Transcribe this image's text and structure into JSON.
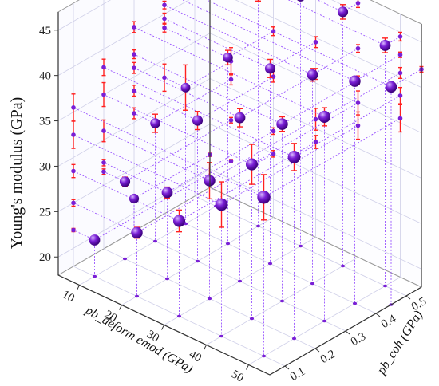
{
  "chart_data": {
    "type": "scatter",
    "mode": "3d-scatter-with-error-bars-and-wall-projections",
    "xlabel": "pb_deform emod (GPa)",
    "ylabel": "pb_coh (GPa)",
    "zlabel": "Young's modulus (GPa)",
    "xlim": [
      5,
      55
    ],
    "ylim": [
      0.05,
      0.55
    ],
    "zlim": [
      18,
      47
    ],
    "xticks": [
      "10",
      "20",
      "30",
      "40",
      "50"
    ],
    "yticks": [
      "0.1",
      "0.2",
      "0.3",
      "0.4",
      "0.5"
    ],
    "zticks": [
      "20",
      "25",
      "30",
      "35",
      "40",
      "45"
    ],
    "colors": {
      "marker": "#7a1fd6",
      "error_bar": "#ff2020",
      "drop_line": "#9a55ff",
      "grid": "#cfcfe8",
      "axis": "#333333"
    },
    "grid": true,
    "points": [
      {
        "x": 5,
        "y": 0.3,
        "z": 21.6,
        "err": 0.3
      },
      {
        "x": 10,
        "y": 0.1,
        "z": 22.0,
        "err": 0.3
      },
      {
        "x": 10,
        "y": 0.2,
        "z": 26.5,
        "err": 0.5
      },
      {
        "x": 10,
        "y": 0.3,
        "z": 31.0,
        "err": 1.0
      },
      {
        "x": 10,
        "y": 0.4,
        "z": 33.0,
        "err": 2.5
      },
      {
        "x": 10,
        "y": 0.5,
        "z": 44.7,
        "err": 0.6
      },
      {
        "x": 20,
        "y": 0.1,
        "z": 25.0,
        "err": 0.6
      },
      {
        "x": 20,
        "y": 0.2,
        "z": 27.5,
        "err": 0.6
      },
      {
        "x": 20,
        "y": 0.3,
        "z": 33.5,
        "err": 1.0
      },
      {
        "x": 20,
        "y": 0.4,
        "z": 38.5,
        "err": 0.8
      },
      {
        "x": 20,
        "y": 0.5,
        "z": 43.5,
        "err": 0.7
      },
      {
        "x": 30,
        "y": 0.1,
        "z": 28.5,
        "err": 1.2
      },
      {
        "x": 30,
        "y": 0.2,
        "z": 31.0,
        "err": 2.0
      },
      {
        "x": 30,
        "y": 0.3,
        "z": 36.0,
        "err": 1.0
      },
      {
        "x": 30,
        "y": 0.4,
        "z": 39.5,
        "err": 1.0
      },
      {
        "x": 30,
        "y": 0.5,
        "z": 45.5,
        "err": 0.4
      },
      {
        "x": 40,
        "y": 0.1,
        "z": 32.5,
        "err": 2.5
      },
      {
        "x": 40,
        "y": 0.2,
        "z": 35.0,
        "err": 2.2
      },
      {
        "x": 40,
        "y": 0.3,
        "z": 37.5,
        "err": 0.8
      },
      {
        "x": 40,
        "y": 0.4,
        "z": 41.0,
        "err": 0.7
      },
      {
        "x": 40,
        "y": 0.5,
        "z": 46.0,
        "err": 0.8
      },
      {
        "x": 50,
        "y": 0.1,
        "z": 35.5,
        "err": 2.5
      },
      {
        "x": 50,
        "y": 0.2,
        "z": 38.0,
        "err": 1.5
      },
      {
        "x": 50,
        "y": 0.3,
        "z": 40.5,
        "err": 1.0
      },
      {
        "x": 50,
        "y": 0.4,
        "z": 42.5,
        "err": 0.5
      },
      {
        "x": 50,
        "y": 0.5,
        "z": 44.5,
        "err": 0.8
      },
      {
        "x": 55,
        "y": 0.45,
        "z": 42.0,
        "err": 0.5
      }
    ]
  }
}
